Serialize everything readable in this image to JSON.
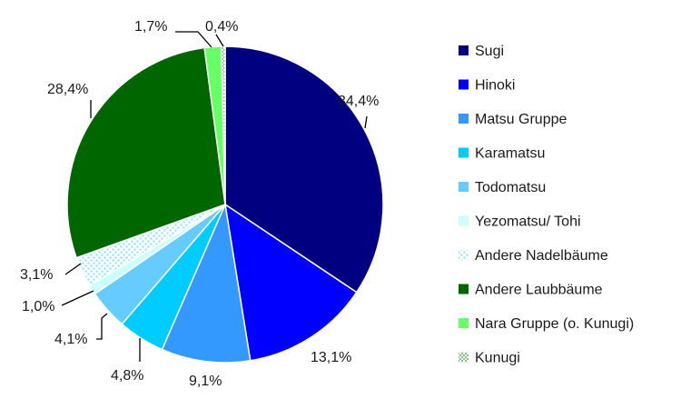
{
  "chart_data": {
    "type": "pie",
    "title": "",
    "legend_position": "right",
    "slices": [
      {
        "label": "Sugi",
        "value": 34.4,
        "display": "34,4%",
        "color": "#000080",
        "pattern": false
      },
      {
        "label": "Hinoki",
        "value": 13.1,
        "display": "13,1%",
        "color": "#0000ff",
        "pattern": false
      },
      {
        "label": "Matsu Gruppe",
        "value": 9.1,
        "display": "9,1%",
        "color": "#3399ff",
        "pattern": false
      },
      {
        "label": "Karamatsu",
        "value": 4.8,
        "display": "4,8%",
        "color": "#00ccff",
        "pattern": false
      },
      {
        "label": "Todomatsu",
        "value": 4.1,
        "display": "4,1%",
        "color": "#66ccff",
        "pattern": false
      },
      {
        "label": "Yezomatsu/ Tohi",
        "value": 1.0,
        "display": "1,0%",
        "color": "#ccffff",
        "pattern": false
      },
      {
        "label": "Andere Nadelbäume",
        "value": 3.1,
        "display": "3,1%",
        "color": "#ccf2ff",
        "pattern": true
      },
      {
        "label": "Andere Laubbäume",
        "value": 28.4,
        "display": "28,4%",
        "color": "#006600",
        "pattern": false
      },
      {
        "label": "Nara Gruppe (o. Kunugi)",
        "value": 1.7,
        "display": "1,7%",
        "color": "#66ff66",
        "pattern": false
      },
      {
        "label": "Kunugi",
        "value": 0.4,
        "display": "0,4%",
        "color": "#339933",
        "pattern": true
      }
    ]
  }
}
